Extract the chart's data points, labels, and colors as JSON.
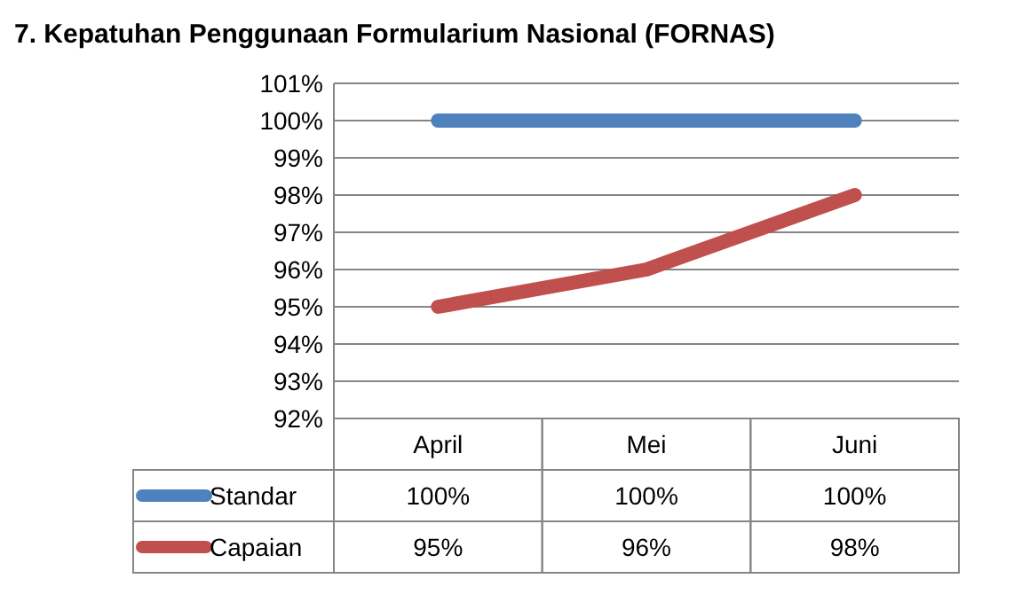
{
  "chart_data": {
    "type": "line",
    "title": "7.   Kepatuhan Penggunaan Formularium Nasional (FORNAS)",
    "categories": [
      "April",
      "Mei",
      "Juni"
    ],
    "series": [
      {
        "name": "Standar",
        "color": "#4f81bd",
        "values": [
          100,
          100,
          100
        ],
        "value_labels": [
          "100%",
          "100%",
          "100%"
        ]
      },
      {
        "name": "Capaian",
        "color": "#c0504d",
        "values": [
          95,
          96,
          98
        ],
        "value_labels": [
          "95%",
          "96%",
          "98%"
        ]
      }
    ],
    "ylim": [
      92,
      101
    ],
    "yticks": [
      {
        "value": 92,
        "label": "92%"
      },
      {
        "value": 93,
        "label": "93%"
      },
      {
        "value": 94,
        "label": "94%"
      },
      {
        "value": 95,
        "label": "95%"
      },
      {
        "value": 96,
        "label": "96%"
      },
      {
        "value": 97,
        "label": "97%"
      },
      {
        "value": 98,
        "label": "98%"
      },
      {
        "value": 99,
        "label": "99%"
      },
      {
        "value": 100,
        "label": "100%"
      },
      {
        "value": 101,
        "label": "101%"
      }
    ],
    "grid": "y",
    "legend": "bottom",
    "marker": "none",
    "line_style": "solid"
  }
}
